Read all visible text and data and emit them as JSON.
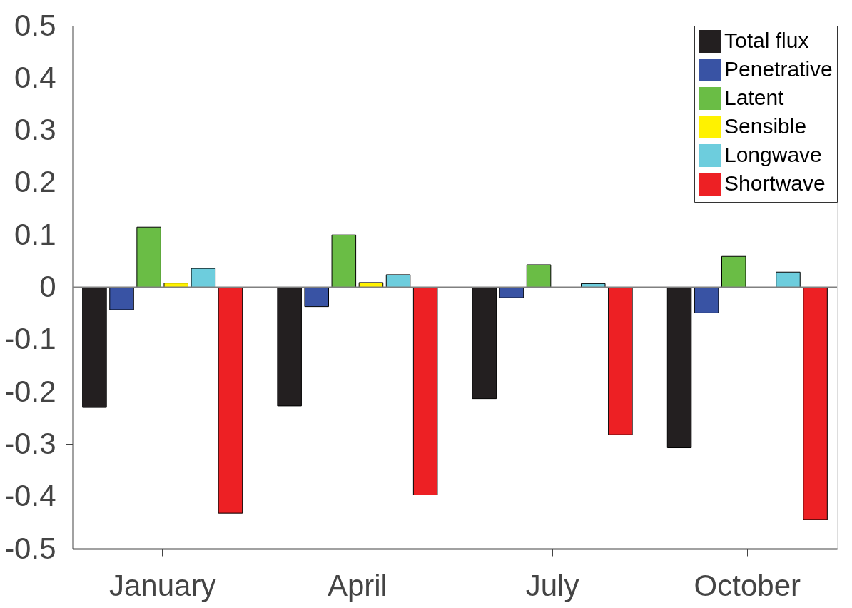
{
  "chart_data": {
    "type": "bar",
    "categories": [
      "January",
      "April",
      "July",
      "October"
    ],
    "series": [
      {
        "name": "Total flux",
        "color": "#231f20",
        "values": [
          -0.23,
          -0.227,
          -0.213,
          -0.307
        ]
      },
      {
        "name": "Penetrative",
        "color": "#3953a4",
        "values": [
          -0.043,
          -0.037,
          -0.02,
          -0.049
        ]
      },
      {
        "name": "Latent",
        "color": "#6abd45",
        "values": [
          0.115,
          0.1,
          0.043,
          0.059
        ]
      },
      {
        "name": "Sensible",
        "color": "#fff200",
        "values": [
          0.008,
          0.009,
          0,
          0
        ]
      },
      {
        "name": "Longwave",
        "color": "#6dcddd",
        "values": [
          0.036,
          0.024,
          0.007,
          0.029
        ]
      },
      {
        "name": "Shortwave",
        "color": "#ed2024",
        "values": [
          -0.432,
          -0.397,
          -0.282,
          -0.444
        ]
      }
    ],
    "ylim": [
      -0.5,
      0.5
    ],
    "yticks": [
      {
        "value": -0.5,
        "label": "-0.5"
      },
      {
        "value": -0.4,
        "label": "-0.4"
      },
      {
        "value": -0.3,
        "label": "-0.3"
      },
      {
        "value": -0.2,
        "label": "-0.2"
      },
      {
        "value": -0.1,
        "label": "-0.1"
      },
      0,
      0.1,
      0.2,
      0.3,
      0.4,
      0.5
    ],
    "ref_lines": [
      {
        "axis": "y",
        "value": 0,
        "color": "#808080"
      }
    ],
    "grid": false,
    "legend": "top right"
  }
}
